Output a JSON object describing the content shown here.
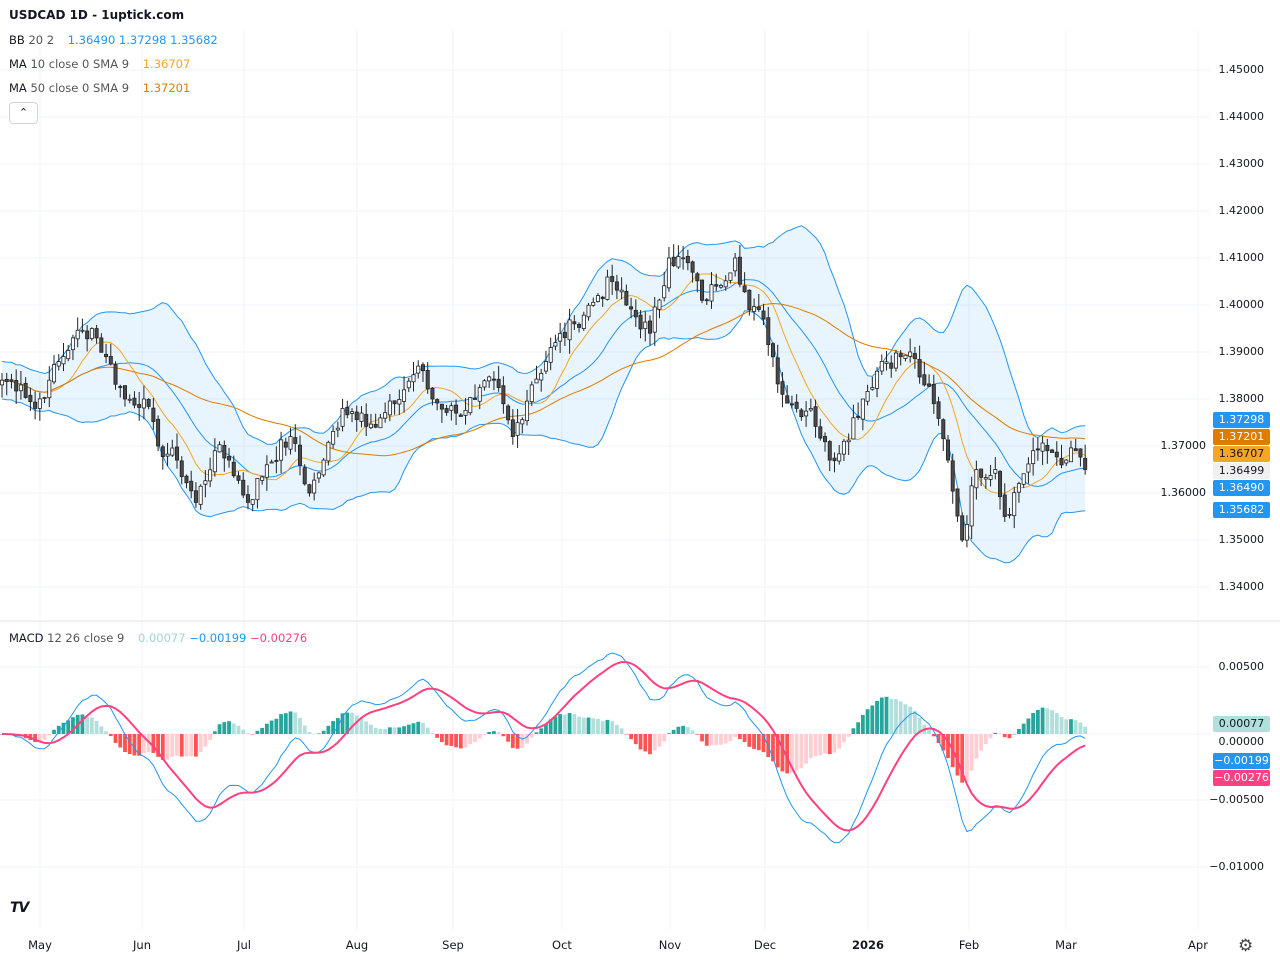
{
  "header": {
    "title": "USDCAD 1D - 1uptick.com"
  },
  "legend": {
    "bb": {
      "label": "BB",
      "params": "20 2",
      "values": [
        "1.36490",
        "1.37298",
        "1.35682"
      ]
    },
    "ma10": {
      "label": "MA",
      "params": "10 close 0 SMA 9",
      "value": "1.36707"
    },
    "ma50": {
      "label": "MA",
      "params": "50 close 0 SMA 9",
      "value": "1.37201"
    },
    "macd": {
      "label": "MACD",
      "params": "12 26 close 9",
      "values": [
        "0.00077",
        "−0.00199",
        "−0.00276"
      ]
    },
    "collapse_icon": "chevron-up-icon"
  },
  "colors": {
    "bb": "#2196f3",
    "ma10": "#f5a623",
    "ma50": "#e07b00",
    "macd": "#2196f3",
    "signal": "#ff4081",
    "hist_up": "#26a69a",
    "hist_up_light": "#b2dfdb",
    "hist_down": "#ff5252",
    "hist_down_light": "#ffcdd2",
    "candle_down": "#4a4a4a"
  },
  "price_axis": [
    "1.45000",
    "1.44000",
    "1.43000",
    "1.42000",
    "1.41000",
    "1.40000",
    "1.39000",
    "1.38000",
    "1.37000",
    "1.36000",
    "1.35000",
    "1.34000"
  ],
  "macd_axis": [
    "0.00500",
    "0.00000",
    "−0.00500",
    "−0.01000"
  ],
  "price_badges": [
    {
      "text": "1.37298",
      "color": "#2196f3"
    },
    {
      "text": "1.37201",
      "color": "#e07b00"
    },
    {
      "text": "1.36707",
      "color": "#f5a623"
    },
    {
      "text": "1.36499",
      "color": "#f0f0f0"
    },
    {
      "text": "1.36490",
      "color": "#2196f3"
    },
    {
      "text": "1.35682",
      "color": "#2196f3"
    }
  ],
  "macd_badges": [
    {
      "text": "0.00077",
      "color": "#b2dfdb"
    },
    {
      "text": "−0.00199",
      "color": "#2196f3"
    },
    {
      "text": "−0.00276",
      "color": "#ff4081"
    }
  ],
  "time_axis": [
    "May",
    "Jun",
    "Jul",
    "Aug",
    "Sep",
    "Oct",
    "Nov",
    "Dec",
    "2026",
    "Feb",
    "Mar",
    "Apr"
  ],
  "logo": "TV",
  "chart_data": {
    "type": "candlestick",
    "symbol": "USDCAD",
    "interval": "1D",
    "ylim": [
      1.337,
      1.455
    ],
    "macd_ylim": [
      -0.0125,
      0.0065
    ],
    "close_keypoints": [
      [
        "2025-04-18",
        1.384
      ],
      [
        "2025-04-24",
        1.383
      ],
      [
        "2025-04-29",
        1.378
      ],
      [
        "2025-05-02",
        1.384
      ],
      [
        "2025-05-09",
        1.393
      ],
      [
        "2025-05-15",
        1.395
      ],
      [
        "2025-05-20",
        1.389
      ],
      [
        "2025-05-26",
        1.38
      ],
      [
        "2025-05-30",
        1.38
      ],
      [
        "2025-06-04",
        1.37
      ],
      [
        "2025-06-10",
        1.367
      ],
      [
        "2025-06-16",
        1.358
      ],
      [
        "2025-06-20",
        1.369
      ],
      [
        "2025-06-25",
        1.367
      ],
      [
        "2025-07-01",
        1.358
      ],
      [
        "2025-07-07",
        1.366
      ],
      [
        "2025-07-14",
        1.372
      ],
      [
        "2025-07-18",
        1.36
      ],
      [
        "2025-07-23",
        1.367
      ],
      [
        "2025-07-29",
        1.378
      ],
      [
        "2025-08-04",
        1.377
      ],
      [
        "2025-08-07",
        1.374
      ],
      [
        "2025-08-13",
        1.379
      ],
      [
        "2025-08-20",
        1.387
      ],
      [
        "2025-08-25",
        1.38
      ],
      [
        "2025-09-01",
        1.377
      ],
      [
        "2025-09-05",
        1.38
      ],
      [
        "2025-09-11",
        1.384
      ],
      [
        "2025-09-17",
        1.372
      ],
      [
        "2025-09-23",
        1.383
      ],
      [
        "2025-09-30",
        1.392
      ],
      [
        "2025-10-06",
        1.396
      ],
      [
        "2025-10-13",
        1.402
      ],
      [
        "2025-10-16",
        1.405
      ],
      [
        "2025-10-21",
        1.4
      ],
      [
        "2025-10-28",
        1.394
      ],
      [
        "2025-11-03",
        1.41
      ],
      [
        "2025-11-07",
        1.409
      ],
      [
        "2025-11-12",
        1.401
      ],
      [
        "2025-11-17",
        1.404
      ],
      [
        "2025-11-21",
        1.41
      ],
      [
        "2025-11-26",
        1.399
      ],
      [
        "2025-12-01",
        1.397
      ],
      [
        "2025-12-05",
        1.381
      ],
      [
        "2025-12-10",
        1.378
      ],
      [
        "2025-12-15",
        1.378
      ],
      [
        "2025-12-19",
        1.367
      ],
      [
        "2025-12-24",
        1.371
      ],
      [
        "2025-12-30",
        1.38
      ],
      [
        "2026-01-05",
        1.388
      ],
      [
        "2026-01-09",
        1.389
      ],
      [
        "2026-01-13",
        1.39
      ],
      [
        "2026-01-16",
        1.383
      ],
      [
        "2026-01-20",
        1.379
      ],
      [
        "2026-01-23",
        1.367
      ],
      [
        "2026-01-28",
        1.35
      ],
      [
        "2026-02-02",
        1.365
      ],
      [
        "2026-02-06",
        1.365
      ],
      [
        "2026-02-10",
        1.355
      ],
      [
        "2026-02-13",
        1.362
      ],
      [
        "2026-02-18",
        1.369
      ],
      [
        "2026-02-23",
        1.369
      ],
      [
        "2026-02-27",
        1.367
      ],
      [
        "2026-03-03",
        1.369
      ],
      [
        "2026-03-05",
        1.365
      ]
    ]
  }
}
